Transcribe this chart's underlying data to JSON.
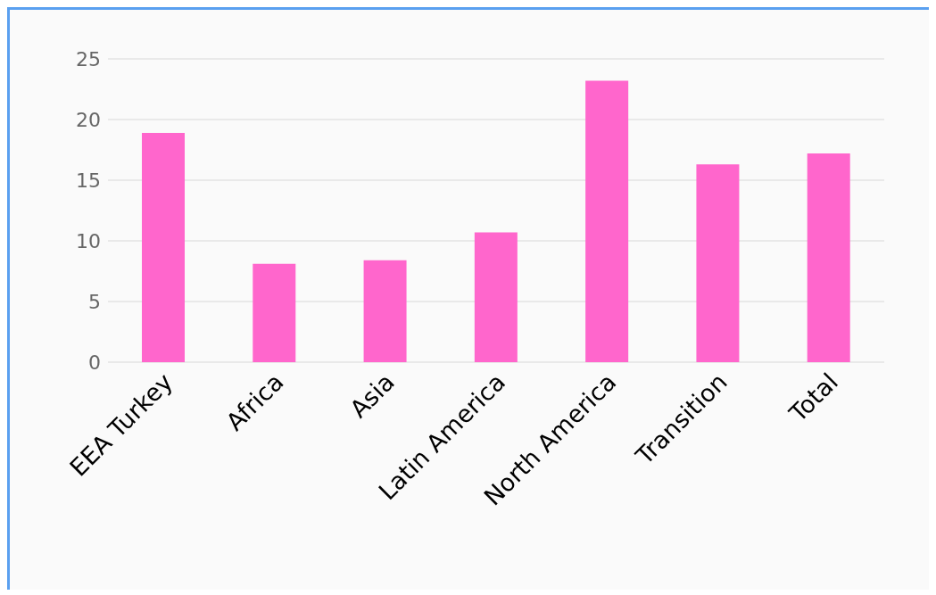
{
  "chart_data": {
    "type": "bar",
    "categories": [
      "EEA Turkey",
      "Africa",
      "Asia",
      "Latin America",
      "North America",
      "Transition",
      "Total"
    ],
    "values": [
      18.9,
      8.1,
      8.4,
      10.7,
      23.2,
      16.3,
      17.2
    ],
    "color": "#ff66cc",
    "ylim": [
      0,
      25
    ],
    "yticks": [
      0,
      5,
      10,
      15,
      20,
      25
    ],
    "grid": "y"
  }
}
